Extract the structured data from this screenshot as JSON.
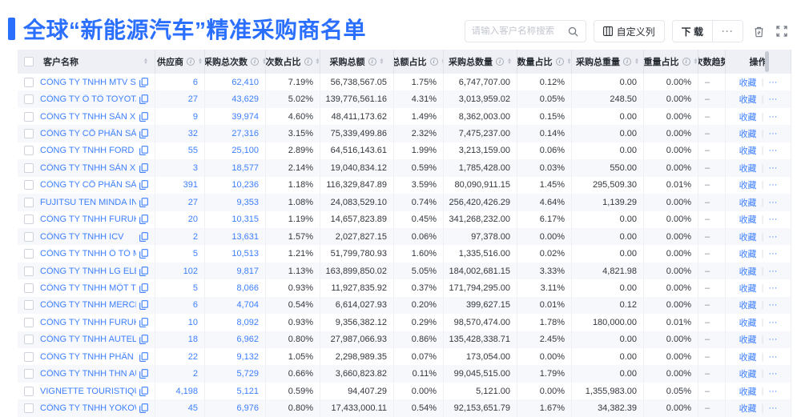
{
  "page": {
    "title": "全球“新能源汽车”精准采购商名单"
  },
  "colors": {
    "accent_blue": "#2b6fff",
    "link_blue": "#3d7fff",
    "header_bg": "#eef0f5"
  },
  "icons": {
    "search": "magnifier",
    "custom_columns": "column-grid",
    "trash": "trash-can",
    "fullscreen": "expand-arrows",
    "copy": "copy-doc",
    "info": "i",
    "sort_asc": "▲",
    "sort_desc": "▼"
  },
  "toolbar": {
    "search_placeholder": "请输入客户名称搜索",
    "custom_columns_label": "自定义列",
    "download_label": "下 载",
    "download_more_label": "···"
  },
  "table": {
    "columns": [
      {
        "label": "客户名称",
        "info": false,
        "sort": true
      },
      {
        "label": "供应商",
        "info": true,
        "sort": true
      },
      {
        "label": "采购总次数",
        "info": true,
        "sort": true
      },
      {
        "label": "次数占比",
        "info": true,
        "sort": true
      },
      {
        "label": "采购总额",
        "info": true,
        "sort": true
      },
      {
        "label": "总额占比",
        "info": true,
        "sort": true
      },
      {
        "label": "采购总数量",
        "info": true,
        "sort": true
      },
      {
        "label": "数量占比",
        "info": true,
        "sort": true
      },
      {
        "label": "采购总重量",
        "info": true,
        "sort": true
      },
      {
        "label": "重量占比",
        "info": true,
        "sort": true
      },
      {
        "label": "次数趋势",
        "info": false,
        "sort": false
      },
      {
        "label": "操作",
        "info": false,
        "sort": false
      }
    ],
    "actions": {
      "favorite": "收藏",
      "divider": "|",
      "more": "···"
    },
    "rows": [
      {
        "name": "CÔNG TY TNHH MTV SẢN XUẤ...",
        "suppliers": "6",
        "purchases": "62,410",
        "count_pct": "7.19%",
        "amount": "56,738,567.05",
        "amount_pct": "1.75%",
        "quantity": "6,747,707.00",
        "quantity_pct": "0.12%",
        "weight": "0.00",
        "weight_pct": "0.00%",
        "trend": "–"
      },
      {
        "name": "CÔNG TY Ô TÔ TOYOTA VIỆT ...",
        "suppliers": "27",
        "purchases": "43,629",
        "count_pct": "5.02%",
        "amount": "139,776,561.16",
        "amount_pct": "4.31%",
        "quantity": "3,013,959.02",
        "quantity_pct": "0.05%",
        "weight": "248.50",
        "weight_pct": "0.00%",
        "trend": "–"
      },
      {
        "name": "CÔNG TY TNHH SẢN XUẤT VÀ ...",
        "suppliers": "9",
        "purchases": "39,974",
        "count_pct": "4.60%",
        "amount": "48,411,173.62",
        "amount_pct": "1.49%",
        "quantity": "8,362,003.00",
        "quantity_pct": "0.15%",
        "weight": "0.00",
        "weight_pct": "0.00%",
        "trend": "–"
      },
      {
        "name": "CÔNG TY CỔ PHẦN SẢN XUẤT...",
        "suppliers": "32",
        "purchases": "27,316",
        "count_pct": "3.15%",
        "amount": "75,339,499.86",
        "amount_pct": "2.32%",
        "quantity": "7,475,237.00",
        "quantity_pct": "0.14%",
        "weight": "0.00",
        "weight_pct": "0.00%",
        "trend": "–"
      },
      {
        "name": "CÔNG TY TNHH FORD VIỆT NAM",
        "suppliers": "55",
        "purchases": "25,100",
        "count_pct": "2.89%",
        "amount": "64,516,143.61",
        "amount_pct": "1.99%",
        "quantity": "3,213,159.00",
        "quantity_pct": "0.06%",
        "weight": "0.00",
        "weight_pct": "0.00%",
        "trend": "–"
      },
      {
        "name": "CÔNG TY TNHH SẢN XUẤT VÀ ...",
        "suppliers": "3",
        "purchases": "18,577",
        "count_pct": "2.14%",
        "amount": "19,040,834.12",
        "amount_pct": "0.59%",
        "quantity": "1,785,428.00",
        "quantity_pct": "0.03%",
        "weight": "550.00",
        "weight_pct": "0.00%",
        "trend": "–"
      },
      {
        "name": "CÔNG TY CỔ PHẦN SẢN XUẤT...",
        "suppliers": "391",
        "purchases": "10,236",
        "count_pct": "1.18%",
        "amount": "116,329,847.89",
        "amount_pct": "3.59%",
        "quantity": "80,090,911.15",
        "quantity_pct": "1.45%",
        "weight": "295,509.30",
        "weight_pct": "0.01%",
        "trend": "–"
      },
      {
        "name": "FUJITSU TEN MINDA INDIA PVT...",
        "suppliers": "27",
        "purchases": "9,353",
        "count_pct": "1.08%",
        "amount": "24,083,529.10",
        "amount_pct": "0.74%",
        "quantity": "256,420,426.29",
        "quantity_pct": "4.64%",
        "weight": "1,139.29",
        "weight_pct": "0.00%",
        "trend": "–"
      },
      {
        "name": "CÔNG TY TNHH FURUKAWA A...",
        "suppliers": "20",
        "purchases": "10,315",
        "count_pct": "1.19%",
        "amount": "14,657,823.89",
        "amount_pct": "0.45%",
        "quantity": "341,268,232.00",
        "quantity_pct": "6.17%",
        "weight": "0.00",
        "weight_pct": "0.00%",
        "trend": "–"
      },
      {
        "name": "CÔNG TY TNHH ICV",
        "suppliers": "2",
        "purchases": "13,631",
        "count_pct": "1.57%",
        "amount": "2,027,827.15",
        "amount_pct": "0.06%",
        "quantity": "97,378.00",
        "quantity_pct": "0.00%",
        "weight": "0.00",
        "weight_pct": "0.00%",
        "trend": "–"
      },
      {
        "name": "CÔNG TY TNHH Ô TÔ MITSUBI...",
        "suppliers": "5",
        "purchases": "10,513",
        "count_pct": "1.21%",
        "amount": "51,799,780.93",
        "amount_pct": "1.60%",
        "quantity": "1,335,516.00",
        "quantity_pct": "0.02%",
        "weight": "0.00",
        "weight_pct": "0.00%",
        "trend": "–"
      },
      {
        "name": "CÔNG TY TNHH LG ELECTRON...",
        "suppliers": "102",
        "purchases": "9,817",
        "count_pct": "1.13%",
        "amount": "163,899,850.02",
        "amount_pct": "5.05%",
        "quantity": "184,002,681.15",
        "quantity_pct": "3.33%",
        "weight": "4,821.98",
        "weight_pct": "0.00%",
        "trend": "–"
      },
      {
        "name": "CÔNG TY TNHH MỘT THÀNH V...",
        "suppliers": "5",
        "purchases": "8,066",
        "count_pct": "0.93%",
        "amount": "11,927,835.92",
        "amount_pct": "0.37%",
        "quantity": "171,794,295.00",
        "quantity_pct": "3.11%",
        "weight": "0.00",
        "weight_pct": "0.00%",
        "trend": "–"
      },
      {
        "name": "CÔNG TY TNHH MERCEDES–B...",
        "suppliers": "6",
        "purchases": "4,704",
        "count_pct": "0.54%",
        "amount": "6,614,027.93",
        "amount_pct": "0.20%",
        "quantity": "399,627.15",
        "quantity_pct": "0.01%",
        "weight": "0.12",
        "weight_pct": "0.00%",
        "trend": "–"
      },
      {
        "name": "CÔNG TY TNHH FURUKAWA A...",
        "suppliers": "10",
        "purchases": "8,092",
        "count_pct": "0.93%",
        "amount": "9,356,382.12",
        "amount_pct": "0.29%",
        "quantity": "98,570,474.00",
        "quantity_pct": "1.78%",
        "weight": "180,000.00",
        "weight_pct": "0.01%",
        "trend": "–"
      },
      {
        "name": "CÔNG TY TNHH AUTEL VIỆT N...",
        "suppliers": "18",
        "purchases": "6,962",
        "count_pct": "0.80%",
        "amount": "27,987,066.93",
        "amount_pct": "0.86%",
        "quantity": "135,428,338.71",
        "quantity_pct": "2.45%",
        "weight": "0.00",
        "weight_pct": "0.00%",
        "trend": "–"
      },
      {
        "name": "CÔNG TY TNHH PHÂN PHỐI T...",
        "suppliers": "22",
        "purchases": "9,132",
        "count_pct": "1.05%",
        "amount": "2,298,989.35",
        "amount_pct": "0.07%",
        "quantity": "173,054.00",
        "quantity_pct": "0.00%",
        "weight": "0.00",
        "weight_pct": "0.00%",
        "trend": "–"
      },
      {
        "name": "CÔNG TY TNHH THN AUTOPAR...",
        "suppliers": "2",
        "purchases": "5,729",
        "count_pct": "0.66%",
        "amount": "3,660,823.82",
        "amount_pct": "0.11%",
        "quantity": "99,045,515.00",
        "quantity_pct": "1.79%",
        "weight": "0.00",
        "weight_pct": "0.00%",
        "trend": "–"
      },
      {
        "name": "VIGNETTE TOURISTIQUE G UNI...",
        "suppliers": "4,198",
        "purchases": "5,121",
        "count_pct": "0.59%",
        "amount": "94,407.29",
        "amount_pct": "0.00%",
        "quantity": "5,121.00",
        "quantity_pct": "0.00%",
        "weight": "1,355,983.00",
        "weight_pct": "0.05%",
        "trend": "–"
      },
      {
        "name": "CÔNG TY TNHH YOKOWO VIỆT...",
        "suppliers": "45",
        "purchases": "6,976",
        "count_pct": "0.80%",
        "amount": "17,433,000.11",
        "amount_pct": "0.54%",
        "quantity": "92,153,651.79",
        "quantity_pct": "1.67%",
        "weight": "34,382.39",
        "weight_pct": "0.00%",
        "trend": "–"
      }
    ]
  }
}
